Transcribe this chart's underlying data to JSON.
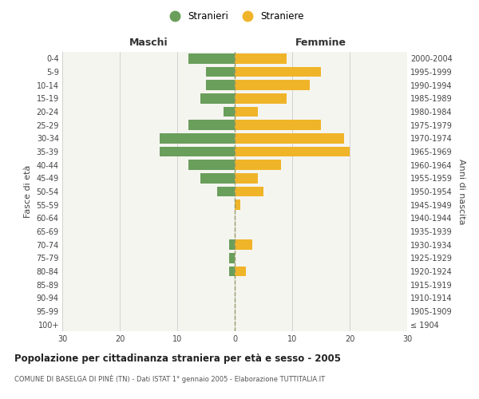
{
  "age_groups": [
    "100+",
    "95-99",
    "90-94",
    "85-89",
    "80-84",
    "75-79",
    "70-74",
    "65-69",
    "60-64",
    "55-59",
    "50-54",
    "45-49",
    "40-44",
    "35-39",
    "30-34",
    "25-29",
    "20-24",
    "15-19",
    "10-14",
    "5-9",
    "0-4"
  ],
  "birth_years": [
    "≤ 1904",
    "1905-1909",
    "1910-1914",
    "1915-1919",
    "1920-1924",
    "1925-1929",
    "1930-1934",
    "1935-1939",
    "1940-1944",
    "1945-1949",
    "1950-1954",
    "1955-1959",
    "1960-1964",
    "1965-1969",
    "1970-1974",
    "1975-1979",
    "1980-1984",
    "1985-1989",
    "1990-1994",
    "1995-1999",
    "2000-2004"
  ],
  "maschi": [
    0,
    0,
    0,
    0,
    1,
    1,
    1,
    0,
    0,
    0,
    3,
    6,
    8,
    13,
    13,
    8,
    2,
    6,
    5,
    5,
    8
  ],
  "femmine": [
    0,
    0,
    0,
    0,
    2,
    0,
    3,
    0,
    0,
    1,
    5,
    4,
    8,
    20,
    19,
    15,
    4,
    9,
    13,
    15,
    9
  ],
  "color_maschi": "#6a9e5b",
  "color_femmine": "#f0b429",
  "chart_background": "#f5f5f0",
  "fig_background": "#ffffff",
  "grid_color": "#cccccc",
  "vline_color": "#999966",
  "title": "Popolazione per cittadinanza straniera per età e sesso - 2005",
  "subtitle": "COMUNE DI BASELGA DI PINÈ (TN) - Dati ISTAT 1° gennaio 2005 - Elaborazione TUTTITALIA.IT",
  "ylabel_left": "Fasce di età",
  "ylabel_right": "Anni di nascita",
  "xlabel_left": "Maschi",
  "xlabel_right": "Femmine",
  "legend_maschi": "Stranieri",
  "legend_femmine": "Straniere",
  "xlim": 30,
  "bar_height": 0.75
}
